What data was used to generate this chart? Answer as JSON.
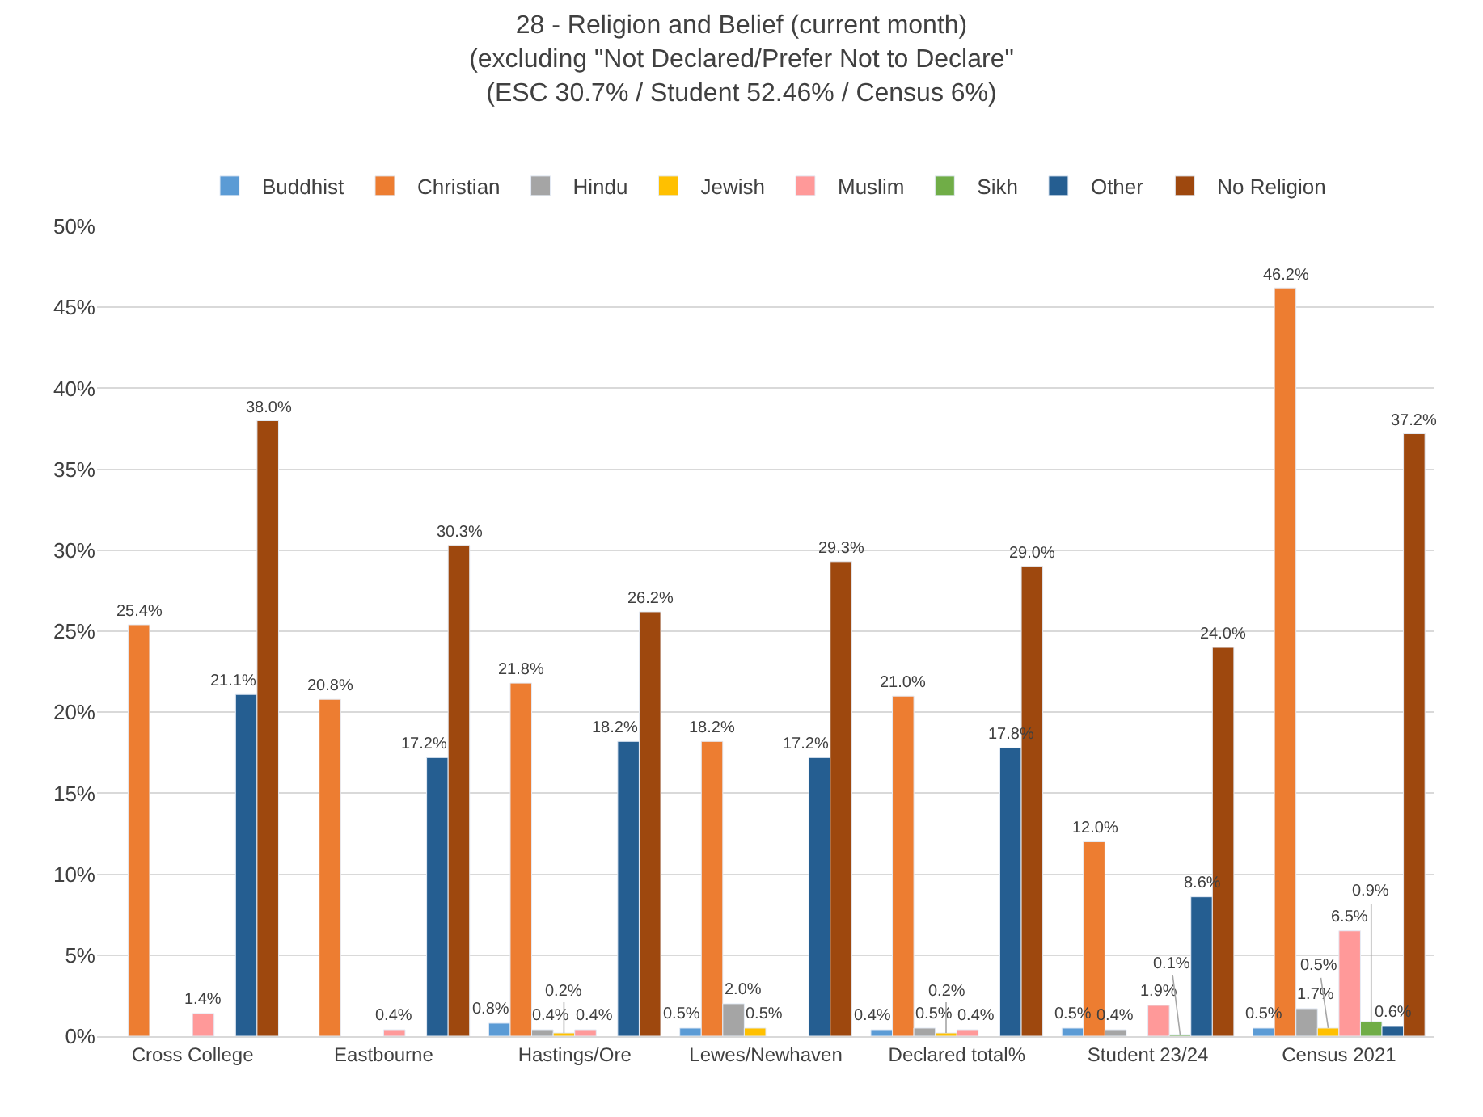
{
  "chart_data": {
    "type": "bar",
    "title": "28 - Religion and Belief (current month)\n(excluding \"Not Declared/Prefer Not to Declare\"\n(ESC 30.7% / Student 52.46% / Census 6%)",
    "categories": [
      "Cross College",
      "Eastbourne",
      "Hastings/Ore",
      "Lewes/Newhaven",
      "Declared total%",
      "Student 23/24",
      "Census 2021"
    ],
    "series": [
      {
        "name": "Buddhist",
        "color": "#5b9bd5",
        "values": [
          null,
          null,
          0.8,
          0.5,
          0.4,
          0.5,
          0.5
        ],
        "value_labels": [
          null,
          null,
          "0.8%",
          "0.5%",
          "0.4%",
          "0.5%",
          "0.5%"
        ]
      },
      {
        "name": "Christian",
        "color": "#ed7d31",
        "values": [
          25.4,
          20.8,
          21.8,
          18.2,
          21.0,
          12.0,
          46.2
        ],
        "value_labels": [
          "25.4%",
          "20.8%",
          "21.8%",
          "18.2%",
          "21.0%",
          "12.0%",
          "46.2%"
        ]
      },
      {
        "name": "Hindu",
        "color": "#a5a5a5",
        "values": [
          null,
          null,
          0.4,
          2.0,
          0.5,
          0.4,
          1.7
        ],
        "value_labels": [
          null,
          null,
          "0.4%",
          "2.0%",
          "0.5%",
          "0.4%",
          "1.7%"
        ]
      },
      {
        "name": "Jewish",
        "color": "#ffc000",
        "values": [
          null,
          null,
          0.2,
          0.5,
          0.2,
          null,
          0.5
        ],
        "value_labels": [
          null,
          null,
          "0.2%",
          "0.5%",
          "0.2%",
          null,
          "0.5%"
        ]
      },
      {
        "name": "Muslim",
        "color": "#ff9999",
        "values": [
          1.4,
          0.4,
          0.4,
          null,
          0.4,
          1.9,
          6.5
        ],
        "value_labels": [
          "1.4%",
          "0.4%",
          "0.4%",
          null,
          "0.4%",
          "1.9%",
          "6.5%"
        ]
      },
      {
        "name": "Sikh",
        "color": "#70ad47",
        "values": [
          null,
          null,
          null,
          null,
          null,
          0.1,
          0.9
        ],
        "value_labels": [
          null,
          null,
          null,
          null,
          null,
          "0.1%",
          "0.9%"
        ]
      },
      {
        "name": "Other",
        "color": "#255e91",
        "values": [
          21.1,
          17.2,
          18.2,
          17.2,
          17.8,
          8.6,
          0.6
        ],
        "value_labels": [
          "21.1%",
          "17.2%",
          "18.2%",
          "17.2%",
          "17.8%",
          "8.6%",
          "0.6%"
        ]
      },
      {
        "name": "No Religion",
        "color": "#9e480e",
        "values": [
          38.0,
          30.3,
          26.2,
          29.3,
          29.0,
          24.0,
          37.2
        ],
        "value_labels": [
          "38.0%",
          "30.3%",
          "26.2%",
          "29.3%",
          "29.0%",
          "24.0%",
          "37.2%"
        ]
      }
    ],
    "ylim": [
      0,
      50
    ],
    "yticks": [
      {
        "value": 0,
        "label": "0%"
      },
      {
        "value": 5,
        "label": "5%"
      },
      {
        "value": 10,
        "label": "10%"
      },
      {
        "value": 15,
        "label": "15%"
      },
      {
        "value": 20,
        "label": "20%"
      },
      {
        "value": 25,
        "label": "25%"
      },
      {
        "value": 30,
        "label": "30%"
      },
      {
        "value": 35,
        "label": "35%"
      },
      {
        "value": 40,
        "label": "40%"
      },
      {
        "value": 45,
        "label": "45%"
      },
      {
        "value": 50,
        "label": "50%"
      }
    ],
    "grid": "y",
    "legend": "top"
  }
}
